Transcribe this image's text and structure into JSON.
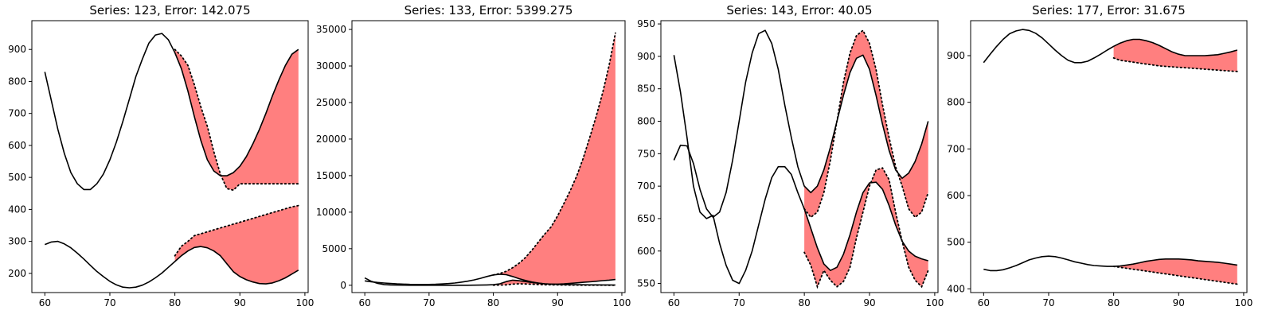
{
  "chart_data": [
    {
      "type": "line",
      "title": "Series: 123, Error: 142.075",
      "xlim": [
        58,
        100.5
      ],
      "ylim": [
        140,
        990
      ],
      "xticks": [
        60,
        70,
        80,
        90,
        100
      ],
      "yticks": [
        200,
        300,
        400,
        500,
        600,
        700,
        800,
        900
      ],
      "fill_color": "#ff7f7f",
      "series": [
        {
          "style": "actual",
          "x": [
            60,
            61,
            62,
            63,
            64,
            65,
            66,
            67,
            68,
            69,
            70,
            71,
            72,
            73,
            74,
            75,
            76,
            77,
            78,
            79,
            80,
            81,
            82,
            83,
            84,
            85,
            86,
            87,
            88,
            89,
            90,
            91,
            92,
            93,
            94,
            95,
            96,
            97,
            98,
            99
          ],
          "values": [
            830,
            740,
            650,
            575,
            515,
            480,
            462,
            462,
            480,
            510,
            555,
            610,
            675,
            745,
            815,
            870,
            920,
            945,
            950,
            930,
            890,
            840,
            770,
            690,
            615,
            555,
            520,
            505,
            505,
            515,
            535,
            565,
            605,
            650,
            700,
            755,
            805,
            850,
            885,
            900
          ]
        },
        {
          "style": "actual",
          "x": [
            60,
            61,
            62,
            63,
            64,
            65,
            66,
            67,
            68,
            69,
            70,
            71,
            72,
            73,
            74,
            75,
            76,
            77,
            78,
            79,
            80,
            81,
            82,
            83,
            84,
            85,
            86,
            87,
            88,
            89,
            90,
            91,
            92,
            93,
            94,
            95,
            96,
            97,
            98,
            99
          ],
          "values": [
            290,
            298,
            300,
            292,
            280,
            263,
            245,
            225,
            206,
            190,
            175,
            164,
            157,
            155,
            157,
            163,
            173,
            186,
            201,
            219,
            237,
            255,
            270,
            281,
            284,
            280,
            270,
            255,
            230,
            205,
            190,
            180,
            173,
            168,
            167,
            170,
            177,
            186,
            198,
            210
          ]
        },
        {
          "style": "predicted",
          "x": [
            80,
            81,
            82,
            83,
            84,
            85,
            86,
            87,
            88,
            89,
            90,
            91,
            92,
            93,
            94,
            95,
            96,
            97,
            98,
            99
          ],
          "values": [
            900,
            880,
            850,
            790,
            720,
            660,
            580,
            510,
            465,
            460,
            480,
            480,
            480,
            480,
            480,
            480,
            480,
            480,
            480,
            480
          ]
        },
        {
          "style": "predicted",
          "x": [
            80,
            81,
            82,
            83,
            84,
            85,
            86,
            87,
            88,
            89,
            90,
            91,
            92,
            93,
            94,
            95,
            96,
            97,
            98,
            99
          ],
          "values": [
            255,
            285,
            300,
            318,
            324,
            330,
            336,
            342,
            348,
            354,
            360,
            366,
            372,
            378,
            384,
            390,
            396,
            402,
            408,
            412
          ]
        }
      ]
    },
    {
      "type": "line",
      "title": "Series: 133, Error: 5399.275",
      "xlim": [
        58,
        100.5
      ],
      "ylim": [
        -1000,
        36200
      ],
      "xticks": [
        60,
        70,
        80,
        90,
        100
      ],
      "yticks": [
        0,
        5000,
        10000,
        15000,
        20000,
        25000,
        30000,
        35000
      ],
      "fill_color": "#ff7f7f",
      "series": [
        {
          "style": "actual",
          "x": [
            60,
            61,
            62,
            63,
            64,
            65,
            66,
            67,
            68,
            69,
            70,
            71,
            72,
            73,
            74,
            75,
            76,
            77,
            78,
            79,
            80,
            81,
            82,
            83,
            84,
            85,
            86,
            87,
            88,
            89,
            90,
            91,
            92,
            93,
            94,
            95,
            96,
            97,
            98,
            99
          ],
          "values": [
            600,
            480,
            380,
            300,
            240,
            190,
            150,
            120,
            110,
            100,
            110,
            130,
            170,
            230,
            310,
            420,
            560,
            730,
            950,
            1200,
            1420,
            1500,
            1450,
            1200,
            900,
            650,
            450,
            300,
            200,
            150,
            150,
            200,
            260,
            330,
            400,
            470,
            550,
            630,
            700,
            780
          ]
        },
        {
          "style": "actual",
          "x": [
            60,
            61,
            62,
            63,
            64,
            65,
            66,
            67,
            68,
            69,
            70,
            71,
            72,
            73,
            74,
            75,
            76,
            77,
            78,
            79,
            80,
            81,
            82,
            83,
            84,
            85,
            86,
            87,
            88,
            89,
            90,
            91,
            92,
            93,
            94,
            95,
            96,
            97,
            98,
            99
          ],
          "values": [
            1000,
            550,
            250,
            100,
            40,
            20,
            10,
            5,
            5,
            5,
            5,
            5,
            5,
            5,
            5,
            5,
            5,
            10,
            20,
            40,
            80,
            200,
            500,
            700,
            620,
            500,
            380,
            280,
            200,
            150,
            120,
            100,
            90,
            80,
            70,
            60,
            50,
            45,
            40,
            35
          ]
        },
        {
          "style": "predicted",
          "x": [
            80,
            81,
            82,
            83,
            84,
            85,
            86,
            87,
            88,
            89,
            90,
            91,
            92,
            93,
            94,
            95,
            96,
            97,
            98,
            99
          ],
          "values": [
            1400,
            1600,
            1900,
            2400,
            3000,
            3800,
            4800,
            5900,
            7000,
            8000,
            9500,
            11200,
            13000,
            15000,
            17400,
            20200,
            23100,
            26300,
            30000,
            34500
          ]
        },
        {
          "style": "predicted",
          "x": [
            80,
            81,
            82,
            83,
            84,
            85,
            86,
            87,
            88,
            89,
            90,
            91,
            92,
            93,
            94,
            95,
            96,
            97,
            98,
            99
          ],
          "values": [
            10,
            20,
            60,
            150,
            200,
            180,
            140,
            100,
            70,
            50,
            40,
            30,
            25,
            20,
            15,
            12,
            10,
            8,
            6,
            5
          ]
        }
      ]
    },
    {
      "type": "line",
      "title": "Series: 143, Error: 40.05",
      "xlim": [
        58,
        100.5
      ],
      "ylim": [
        536,
        955
      ],
      "xticks": [
        60,
        70,
        80,
        90,
        100
      ],
      "yticks": [
        550,
        600,
        650,
        700,
        750,
        800,
        850,
        900,
        950
      ],
      "fill_color": "#ff7f7f",
      "series": [
        {
          "style": "actual",
          "x": [
            60,
            61,
            62,
            63,
            64,
            65,
            66,
            67,
            68,
            69,
            70,
            71,
            72,
            73,
            74,
            75,
            76,
            77,
            78,
            79,
            80,
            81,
            82,
            83,
            84,
            85,
            86,
            87,
            88,
            89,
            90,
            91,
            92,
            93,
            94,
            95,
            96,
            97,
            98,
            99
          ],
          "values": [
            740,
            763,
            762,
            735,
            695,
            665,
            652,
            660,
            690,
            740,
            800,
            860,
            905,
            935,
            940,
            920,
            880,
            825,
            775,
            730,
            700,
            690,
            700,
            725,
            760,
            800,
            840,
            875,
            897,
            902,
            880,
            840,
            795,
            755,
            725,
            712,
            720,
            738,
            765,
            800
          ]
        },
        {
          "style": "actual",
          "x": [
            60,
            61,
            62,
            63,
            64,
            65,
            66,
            67,
            68,
            69,
            70,
            71,
            72,
            73,
            74,
            75,
            76,
            77,
            78,
            79,
            80,
            81,
            82,
            83,
            84,
            85,
            86,
            87,
            88,
            89,
            90,
            91,
            92,
            93,
            94,
            95,
            96,
            97,
            98,
            99
          ],
          "values": [
            902,
            845,
            775,
            700,
            660,
            650,
            655,
            612,
            578,
            555,
            550,
            570,
            600,
            640,
            680,
            713,
            730,
            730,
            718,
            690,
            665,
            635,
            605,
            580,
            570,
            575,
            595,
            625,
            660,
            690,
            705,
            706,
            695,
            670,
            640,
            615,
            600,
            592,
            588,
            585
          ]
        },
        {
          "style": "predicted",
          "x": [
            80,
            81,
            82,
            83,
            84,
            85,
            86,
            87,
            88,
            89,
            90,
            91,
            92,
            93,
            94,
            95,
            96,
            97,
            98,
            99
          ],
          "values": [
            665,
            652,
            660,
            690,
            740,
            800,
            860,
            905,
            932,
            940,
            920,
            880,
            825,
            775,
            730,
            700,
            665,
            652,
            660,
            690
          ]
        },
        {
          "style": "predicted",
          "x": [
            80,
            81,
            82,
            83,
            84,
            85,
            86,
            87,
            88,
            89,
            90,
            91,
            92,
            93,
            94,
            95,
            96,
            97,
            98,
            99
          ],
          "values": [
            598,
            578,
            545,
            570,
            555,
            545,
            553,
            575,
            620,
            660,
            700,
            725,
            728,
            710,
            660,
            615,
            575,
            555,
            545,
            570
          ]
        }
      ]
    },
    {
      "type": "line",
      "title": "Series: 177, Error: 31.675",
      "xlim": [
        58,
        100.5
      ],
      "ylim": [
        392,
        975
      ],
      "xticks": [
        60,
        70,
        80,
        90,
        100
      ],
      "yticks": [
        400,
        500,
        600,
        700,
        800,
        900
      ],
      "fill_color": "#ff7f7f",
      "series": [
        {
          "style": "actual",
          "x": [
            60,
            61,
            62,
            63,
            64,
            65,
            66,
            67,
            68,
            69,
            70,
            71,
            72,
            73,
            74,
            75,
            76,
            77,
            78,
            79,
            80,
            81,
            82,
            83,
            84,
            85,
            86,
            87,
            88,
            89,
            90,
            91,
            92,
            93,
            94,
            95,
            96,
            97,
            98,
            99
          ],
          "values": [
            885,
            903,
            920,
            935,
            947,
            953,
            956,
            954,
            948,
            938,
            925,
            912,
            900,
            890,
            885,
            885,
            888,
            895,
            903,
            912,
            920,
            927,
            932,
            935,
            935,
            932,
            928,
            922,
            915,
            908,
            903,
            900,
            900,
            900,
            900,
            901,
            902,
            905,
            908,
            912
          ]
        },
        {
          "style": "actual",
          "x": [
            60,
            61,
            62,
            63,
            64,
            65,
            66,
            67,
            68,
            69,
            70,
            71,
            72,
            73,
            74,
            75,
            76,
            77,
            78,
            79,
            80,
            81,
            82,
            83,
            84,
            85,
            86,
            87,
            88,
            89,
            90,
            91,
            92,
            93,
            94,
            95,
            96,
            97,
            98,
            99
          ],
          "values": [
            442,
            439,
            439,
            441,
            445,
            450,
            456,
            462,
            466,
            469,
            470,
            469,
            466,
            462,
            458,
            455,
            452,
            450,
            449,
            448,
            448,
            449,
            451,
            453,
            456,
            459,
            461,
            463,
            464,
            464,
            464,
            463,
            462,
            460,
            459,
            458,
            457,
            455,
            453,
            451
          ]
        },
        {
          "style": "predicted",
          "x": [
            80,
            81,
            82,
            83,
            84,
            85,
            86,
            87,
            88,
            89,
            90,
            91,
            92,
            93,
            94,
            95,
            96,
            97,
            98,
            99
          ],
          "values": [
            895,
            890,
            888,
            886,
            884,
            882,
            880,
            878,
            877,
            876,
            875,
            874,
            873,
            872,
            871,
            870,
            869,
            868,
            867,
            866
          ]
        },
        {
          "style": "predicted",
          "x": [
            80,
            81,
            82,
            83,
            84,
            85,
            86,
            87,
            88,
            89,
            90,
            91,
            92,
            93,
            94,
            95,
            96,
            97,
            98,
            99
          ],
          "values": [
            448,
            446,
            444,
            442,
            440,
            438,
            436,
            434,
            432,
            430,
            428,
            426,
            424,
            422,
            420,
            418,
            416,
            414,
            412,
            410
          ]
        }
      ]
    }
  ]
}
